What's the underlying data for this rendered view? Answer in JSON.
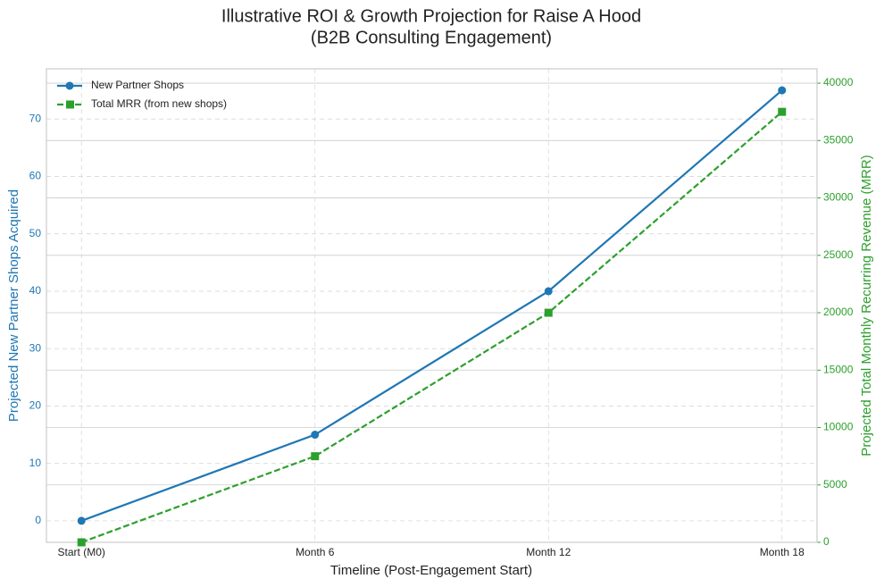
{
  "chart_data": {
    "type": "line",
    "title": [
      "Illustrative ROI & Growth Projection for Raise A Hood",
      "(B2B Consulting Engagement)"
    ],
    "xlabel": "Timeline (Post-Engagement Start)",
    "ylabel": "Projected New Partner Shops Acquired",
    "y2label": "Projected Total Monthly Recurring Revenue (MRR)",
    "categories": [
      "Start (M0)",
      "Month 6",
      "Month 12",
      "Month 18"
    ],
    "series": [
      {
        "name": "New Partner Shops",
        "color": "#1f77b4",
        "marker": "o",
        "linestyle": "solid",
        "values": [
          0,
          15,
          40,
          75
        ]
      },
      {
        "name": "Total MRR (from new shops)",
        "color": "#2ca02c",
        "marker": "s",
        "linestyle": "dashed",
        "axis": "y2",
        "values": [
          0,
          7500,
          20000,
          37500
        ]
      }
    ],
    "ylim": [
      -3.75,
      78.75
    ],
    "yticks": [
      0,
      10,
      20,
      30,
      40,
      50,
      60,
      70
    ],
    "y2lim": [
      0,
      41250
    ],
    "y2ticks": [
      0,
      5000,
      10000,
      15000,
      20000,
      25000,
      30000,
      35000,
      40000
    ],
    "ycolor": "#1f77b4",
    "y2color": "#2ca02c",
    "grid": true,
    "legend": "upper left"
  }
}
